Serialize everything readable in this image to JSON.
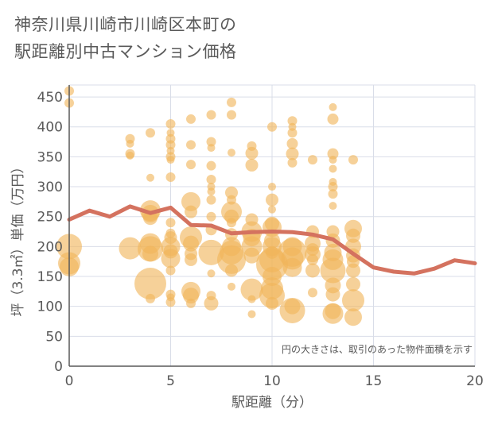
{
  "title_line1": "神奈川県川崎市川崎区本町の",
  "title_line2": "駅距離別中古マンション価格",
  "chart_data": {
    "type": "scatter",
    "xlabel": "駅距離（分）",
    "ylabel": "坪（3.3㎡）単価（万円）",
    "note": "円の大きさは、取引のあった物件面積を示す",
    "xlim": [
      0,
      20
    ],
    "ylim": [
      0,
      470
    ],
    "xticks": [
      0,
      5,
      10,
      15,
      20
    ],
    "yticks": [
      0,
      50,
      100,
      150,
      200,
      250,
      300,
      350,
      400,
      450
    ],
    "grid": true,
    "colors": {
      "bubble": "#f0b45a",
      "line": "#d4725f",
      "grid": "#d9dde8",
      "axis": "#595959"
    },
    "points": [
      {
        "x": 0,
        "y": 460,
        "s": 6
      },
      {
        "x": 0,
        "y": 440,
        "s": 6
      },
      {
        "x": 0,
        "y": 200,
        "s": 16
      },
      {
        "x": 0,
        "y": 172,
        "s": 14
      },
      {
        "x": 0,
        "y": 166,
        "s": 12
      },
      {
        "x": 3,
        "y": 380,
        "s": 6
      },
      {
        "x": 3,
        "y": 372,
        "s": 5
      },
      {
        "x": 3,
        "y": 355,
        "s": 6
      },
      {
        "x": 3,
        "y": 352,
        "s": 5
      },
      {
        "x": 3,
        "y": 197,
        "s": 14
      },
      {
        "x": 4,
        "y": 390,
        "s": 6
      },
      {
        "x": 4,
        "y": 315,
        "s": 5
      },
      {
        "x": 4,
        "y": 260,
        "s": 13
      },
      {
        "x": 4,
        "y": 255,
        "s": 11
      },
      {
        "x": 4,
        "y": 248,
        "s": 9
      },
      {
        "x": 4,
        "y": 205,
        "s": 13
      },
      {
        "x": 4,
        "y": 196,
        "s": 16
      },
      {
        "x": 4,
        "y": 188,
        "s": 10
      },
      {
        "x": 4,
        "y": 138,
        "s": 20
      },
      {
        "x": 4,
        "y": 113,
        "s": 6
      },
      {
        "x": 5,
        "y": 405,
        "s": 6
      },
      {
        "x": 5,
        "y": 390,
        "s": 5
      },
      {
        "x": 5,
        "y": 380,
        "s": 6
      },
      {
        "x": 5,
        "y": 370,
        "s": 6
      },
      {
        "x": 5,
        "y": 360,
        "s": 5
      },
      {
        "x": 5,
        "y": 350,
        "s": 6
      },
      {
        "x": 5,
        "y": 345,
        "s": 5
      },
      {
        "x": 5,
        "y": 316,
        "s": 6
      },
      {
        "x": 5,
        "y": 240,
        "s": 6
      },
      {
        "x": 5,
        "y": 222,
        "s": 6
      },
      {
        "x": 5,
        "y": 215,
        "s": 8
      },
      {
        "x": 5,
        "y": 200,
        "s": 12
      },
      {
        "x": 5,
        "y": 192,
        "s": 9
      },
      {
        "x": 5,
        "y": 180,
        "s": 12
      },
      {
        "x": 5,
        "y": 160,
        "s": 6
      },
      {
        "x": 5,
        "y": 120,
        "s": 6
      },
      {
        "x": 5,
        "y": 115,
        "s": 5
      },
      {
        "x": 5,
        "y": 107,
        "s": 6
      },
      {
        "x": 6,
        "y": 413,
        "s": 6
      },
      {
        "x": 6,
        "y": 370,
        "s": 6
      },
      {
        "x": 6,
        "y": 337,
        "s": 6
      },
      {
        "x": 6,
        "y": 275,
        "s": 12
      },
      {
        "x": 6,
        "y": 258,
        "s": 8
      },
      {
        "x": 6,
        "y": 215,
        "s": 14
      },
      {
        "x": 6,
        "y": 205,
        "s": 10
      },
      {
        "x": 6,
        "y": 188,
        "s": 8
      },
      {
        "x": 6,
        "y": 178,
        "s": 8
      },
      {
        "x": 6,
        "y": 125,
        "s": 12
      },
      {
        "x": 6,
        "y": 118,
        "s": 10
      },
      {
        "x": 6,
        "y": 105,
        "s": 6
      },
      {
        "x": 7,
        "y": 420,
        "s": 6
      },
      {
        "x": 7,
        "y": 375,
        "s": 6
      },
      {
        "x": 7,
        "y": 365,
        "s": 5
      },
      {
        "x": 7,
        "y": 335,
        "s": 6
      },
      {
        "x": 7,
        "y": 312,
        "s": 6
      },
      {
        "x": 7,
        "y": 300,
        "s": 5
      },
      {
        "x": 7,
        "y": 292,
        "s": 5
      },
      {
        "x": 7,
        "y": 278,
        "s": 6
      },
      {
        "x": 7,
        "y": 250,
        "s": 6
      },
      {
        "x": 7,
        "y": 228,
        "s": 7
      },
      {
        "x": 7,
        "y": 190,
        "s": 16
      },
      {
        "x": 7,
        "y": 155,
        "s": 5
      },
      {
        "x": 7,
        "y": 118,
        "s": 6
      },
      {
        "x": 7,
        "y": 105,
        "s": 9
      },
      {
        "x": 8,
        "y": 441,
        "s": 6
      },
      {
        "x": 8,
        "y": 420,
        "s": 6
      },
      {
        "x": 8,
        "y": 357,
        "s": 5
      },
      {
        "x": 8,
        "y": 290,
        "s": 8
      },
      {
        "x": 8,
        "y": 278,
        "s": 6
      },
      {
        "x": 8,
        "y": 258,
        "s": 13
      },
      {
        "x": 8,
        "y": 250,
        "s": 9
      },
      {
        "x": 8,
        "y": 240,
        "s": 6
      },
      {
        "x": 8,
        "y": 220,
        "s": 8
      },
      {
        "x": 8,
        "y": 200,
        "s": 12
      },
      {
        "x": 8,
        "y": 190,
        "s": 15
      },
      {
        "x": 8,
        "y": 178,
        "s": 18
      },
      {
        "x": 8,
        "y": 160,
        "s": 8
      },
      {
        "x": 8,
        "y": 133,
        "s": 5
      },
      {
        "x": 9,
        "y": 368,
        "s": 6
      },
      {
        "x": 9,
        "y": 356,
        "s": 8
      },
      {
        "x": 9,
        "y": 336,
        "s": 8
      },
      {
        "x": 9,
        "y": 245,
        "s": 8
      },
      {
        "x": 9,
        "y": 225,
        "s": 13
      },
      {
        "x": 9,
        "y": 215,
        "s": 11
      },
      {
        "x": 9,
        "y": 200,
        "s": 13
      },
      {
        "x": 9,
        "y": 185,
        "s": 10
      },
      {
        "x": 9,
        "y": 128,
        "s": 14
      },
      {
        "x": 9,
        "y": 112,
        "s": 5
      },
      {
        "x": 9,
        "y": 87,
        "s": 5
      },
      {
        "x": 10,
        "y": 400,
        "s": 6
      },
      {
        "x": 10,
        "y": 300,
        "s": 5
      },
      {
        "x": 10,
        "y": 278,
        "s": 8
      },
      {
        "x": 10,
        "y": 262,
        "s": 5
      },
      {
        "x": 10,
        "y": 238,
        "s": 9
      },
      {
        "x": 10,
        "y": 232,
        "s": 12
      },
      {
        "x": 10,
        "y": 210,
        "s": 10
      },
      {
        "x": 10,
        "y": 200,
        "s": 12
      },
      {
        "x": 10,
        "y": 190,
        "s": 8
      },
      {
        "x": 10,
        "y": 178,
        "s": 16
      },
      {
        "x": 10,
        "y": 170,
        "s": 20
      },
      {
        "x": 10,
        "y": 150,
        "s": 12
      },
      {
        "x": 10,
        "y": 130,
        "s": 14
      },
      {
        "x": 10,
        "y": 118,
        "s": 16
      },
      {
        "x": 10,
        "y": 105,
        "s": 8
      },
      {
        "x": 11,
        "y": 410,
        "s": 6
      },
      {
        "x": 11,
        "y": 400,
        "s": 5
      },
      {
        "x": 11,
        "y": 390,
        "s": 6
      },
      {
        "x": 11,
        "y": 372,
        "s": 7
      },
      {
        "x": 11,
        "y": 355,
        "s": 8
      },
      {
        "x": 11,
        "y": 340,
        "s": 6
      },
      {
        "x": 11,
        "y": 200,
        "s": 12
      },
      {
        "x": 11,
        "y": 190,
        "s": 18
      },
      {
        "x": 11,
        "y": 180,
        "s": 14
      },
      {
        "x": 11,
        "y": 165,
        "s": 12
      },
      {
        "x": 11,
        "y": 100,
        "s": 10
      },
      {
        "x": 11,
        "y": 93,
        "s": 16
      },
      {
        "x": 12,
        "y": 345,
        "s": 6
      },
      {
        "x": 12,
        "y": 225,
        "s": 8
      },
      {
        "x": 12,
        "y": 205,
        "s": 10
      },
      {
        "x": 12,
        "y": 195,
        "s": 8
      },
      {
        "x": 12,
        "y": 187,
        "s": 10
      },
      {
        "x": 12,
        "y": 178,
        "s": 7
      },
      {
        "x": 12,
        "y": 160,
        "s": 9
      },
      {
        "x": 12,
        "y": 123,
        "s": 6
      },
      {
        "x": 13,
        "y": 433,
        "s": 5
      },
      {
        "x": 13,
        "y": 413,
        "s": 7
      },
      {
        "x": 13,
        "y": 355,
        "s": 7
      },
      {
        "x": 13,
        "y": 345,
        "s": 5
      },
      {
        "x": 13,
        "y": 330,
        "s": 5
      },
      {
        "x": 13,
        "y": 308,
        "s": 5
      },
      {
        "x": 13,
        "y": 300,
        "s": 6
      },
      {
        "x": 13,
        "y": 288,
        "s": 6
      },
      {
        "x": 13,
        "y": 268,
        "s": 5
      },
      {
        "x": 13,
        "y": 225,
        "s": 8
      },
      {
        "x": 13,
        "y": 210,
        "s": 9
      },
      {
        "x": 13,
        "y": 190,
        "s": 11
      },
      {
        "x": 13,
        "y": 178,
        "s": 13
      },
      {
        "x": 13,
        "y": 160,
        "s": 16
      },
      {
        "x": 13,
        "y": 135,
        "s": 10
      },
      {
        "x": 13,
        "y": 120,
        "s": 9
      },
      {
        "x": 13,
        "y": 92,
        "s": 10
      },
      {
        "x": 13,
        "y": 88,
        "s": 13
      },
      {
        "x": 14,
        "y": 345,
        "s": 6
      },
      {
        "x": 14,
        "y": 230,
        "s": 11
      },
      {
        "x": 14,
        "y": 218,
        "s": 9
      },
      {
        "x": 14,
        "y": 200,
        "s": 10
      },
      {
        "x": 14,
        "y": 185,
        "s": 9
      },
      {
        "x": 14,
        "y": 175,
        "s": 8
      },
      {
        "x": 14,
        "y": 160,
        "s": 9
      },
      {
        "x": 14,
        "y": 137,
        "s": 9
      },
      {
        "x": 14,
        "y": 110,
        "s": 14
      },
      {
        "x": 14,
        "y": 82,
        "s": 11
      }
    ],
    "line": {
      "x": [
        0,
        1,
        2,
        3,
        4,
        5,
        6,
        7,
        8,
        9,
        10,
        11,
        12,
        13,
        14,
        15,
        16,
        17,
        18,
        19,
        20
      ],
      "y": [
        245,
        260,
        250,
        267,
        256,
        265,
        236,
        235,
        222,
        224,
        225,
        224,
        220,
        212,
        188,
        165,
        158,
        155,
        163,
        177,
        172
      ]
    }
  }
}
